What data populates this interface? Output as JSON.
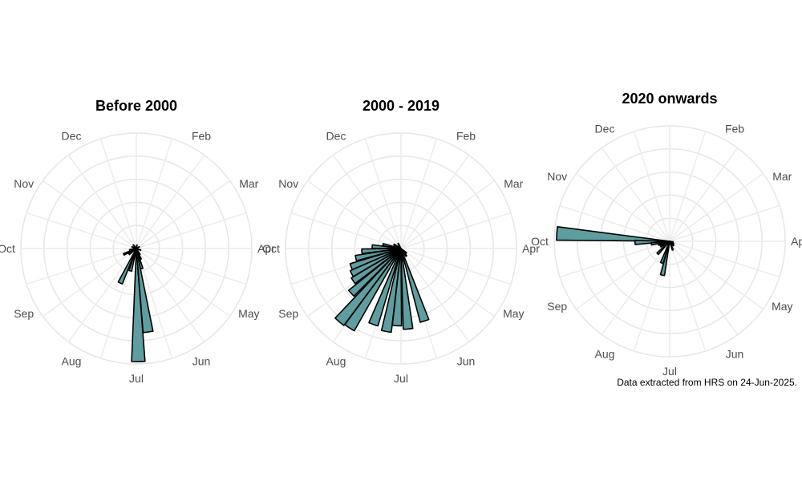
{
  "chart_data": [
    {
      "type": "polar-bar",
      "title": "Before 2000",
      "axis_labels": [
        "Dec",
        "Feb",
        "Mar",
        "Apr",
        "May",
        "Jun",
        "Jul",
        "Aug",
        "Sep",
        "Oct",
        "Nov"
      ],
      "bars": [
        {
          "angle": 179,
          "radius": 0.98
        },
        {
          "angle": 172,
          "radius": 0.73
        },
        {
          "angle": 165,
          "radius": 0.18
        },
        {
          "angle": 158,
          "radius": 0.1
        },
        {
          "angle": 150,
          "radius": 0.06
        },
        {
          "angle": 195,
          "radius": 0.2
        },
        {
          "angle": 205,
          "radius": 0.33
        },
        {
          "angle": 232,
          "radius": 0.08
        },
        {
          "angle": 245,
          "radius": 0.12
        },
        {
          "angle": 258,
          "radius": 0.06
        },
        {
          "angle": 290,
          "radius": 0.04
        },
        {
          "angle": 320,
          "radius": 0.04
        },
        {
          "angle": 10,
          "radius": 0.03
        },
        {
          "angle": 60,
          "radius": 0.03
        },
        {
          "angle": 110,
          "radius": 0.04
        }
      ],
      "colors": {
        "fill": "#5f9ea0",
        "stroke": "#000000"
      }
    },
    {
      "type": "polar-bar",
      "title": "2000 - 2019",
      "axis_labels": [
        "Dec",
        "Feb",
        "Mar",
        "Apr",
        "May",
        "Jun",
        "Jul",
        "Aug",
        "Sep",
        "Oct",
        "Nov"
      ],
      "bars": [
        {
          "angle": 213,
          "radius": 0.82
        },
        {
          "angle": 220,
          "radius": 0.83
        },
        {
          "angle": 200,
          "radius": 0.7
        },
        {
          "angle": 190,
          "radius": 0.73
        },
        {
          "angle": 183,
          "radius": 0.67
        },
        {
          "angle": 175,
          "radius": 0.7
        },
        {
          "angle": 162,
          "radius": 0.66
        },
        {
          "angle": 228,
          "radius": 0.58
        },
        {
          "angle": 236,
          "radius": 0.5
        },
        {
          "angle": 243,
          "radius": 0.48
        },
        {
          "angle": 250,
          "radius": 0.46
        },
        {
          "angle": 258,
          "radius": 0.4
        },
        {
          "angle": 266,
          "radius": 0.34
        },
        {
          "angle": 274,
          "radius": 0.25
        },
        {
          "angle": 282,
          "radius": 0.16
        },
        {
          "angle": 300,
          "radius": 0.07
        },
        {
          "angle": 330,
          "radius": 0.05
        },
        {
          "angle": 130,
          "radius": 0.06
        },
        {
          "angle": 145,
          "radius": 0.08
        }
      ],
      "colors": {
        "fill": "#5f9ea0",
        "stroke": "#000000"
      }
    },
    {
      "type": "polar-bar",
      "title": "2020 onwards",
      "axis_labels": [
        "Dec",
        "Feb",
        "Mar",
        "Apr",
        "May",
        "Jun",
        "Jul",
        "Aug",
        "Sep",
        "Oct",
        "Nov"
      ],
      "bars": [
        {
          "angle": 274,
          "radius": 0.98
        },
        {
          "angle": 268,
          "radius": 0.3
        },
        {
          "angle": 262,
          "radius": 0.16
        },
        {
          "angle": 253,
          "radius": 0.1
        },
        {
          "angle": 240,
          "radius": 0.09
        },
        {
          "angle": 224,
          "radius": 0.15
        },
        {
          "angle": 192,
          "radius": 0.3
        },
        {
          "angle": 200,
          "radius": 0.2
        },
        {
          "angle": 160,
          "radius": 0.08
        },
        {
          "angle": 138,
          "radius": 0.05
        },
        {
          "angle": 120,
          "radius": 0.04
        },
        {
          "angle": 100,
          "radius": 0.03
        }
      ],
      "colors": {
        "fill": "#5f9ea0",
        "stroke": "#000000"
      }
    }
  ],
  "caption": "Data extracted from HRS on 24-Jun-2025."
}
